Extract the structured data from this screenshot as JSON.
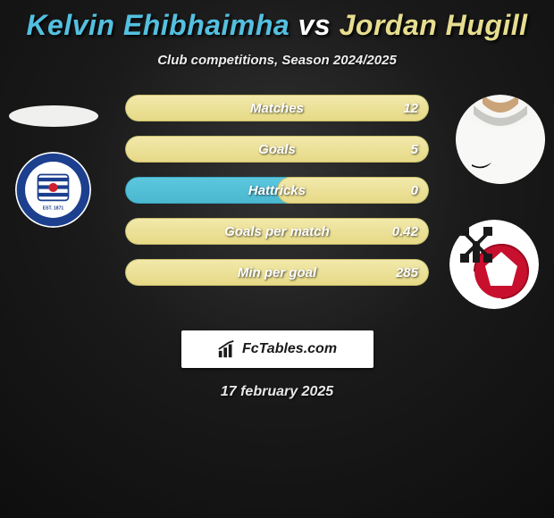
{
  "title": {
    "player1": "Kelvin Ehibhaimha",
    "vs": "vs",
    "player2": "Jordan Hugill",
    "color1": "#53c0e0",
    "color_vs": "#ffffff",
    "color2": "#e7dd8f"
  },
  "subtitle": "Club competitions, Season 2024/2025",
  "bars": {
    "track_color": "#5cc7de",
    "track_border": "#3aa6bf",
    "fill_right_color_top": "#f2e9ab",
    "fill_right_color_bottom": "#e6d986",
    "fill_right_border": "#c9bd6b",
    "rows": [
      {
        "label": "Matches",
        "left": null,
        "right": "12",
        "right_width_pct": 100
      },
      {
        "label": "Goals",
        "left": null,
        "right": "5",
        "right_width_pct": 100
      },
      {
        "label": "Hattricks",
        "left": null,
        "right": "0",
        "right_width_pct": 50
      },
      {
        "label": "Goals per match",
        "left": null,
        "right": "0.42",
        "right_width_pct": 100
      },
      {
        "label": "Min per goal",
        "left": null,
        "right": "285",
        "right_width_pct": 100
      }
    ]
  },
  "left_avatar": {
    "bg": "#f0f0ee"
  },
  "right_avatar": {
    "shirt_color": "#f8f8f6",
    "skin_color": "#d9a977",
    "collar_shadow": "#7a7a76"
  },
  "left_club": {
    "name": "reading-fc",
    "outer": "#ffffff",
    "ring": "#1c3f8e",
    "inner": "#ffffff",
    "stripe": "#1c3f8e",
    "accent": "#d02030",
    "text_top": "READING",
    "text_bottom": "FOOTBALL CLUB",
    "est": "EST. 1871"
  },
  "right_club": {
    "name": "rotherham-united",
    "bg": "#ffffff",
    "ball": "#c8102e",
    "panel": "#ffffff",
    "millers": "#1a1a1a"
  },
  "brand": {
    "text": "FcTables.com",
    "icon_color": "#1a1a1a"
  },
  "date": "17 february 2025",
  "background": {
    "inner": "#333333",
    "outer": "#0e0e0e"
  }
}
